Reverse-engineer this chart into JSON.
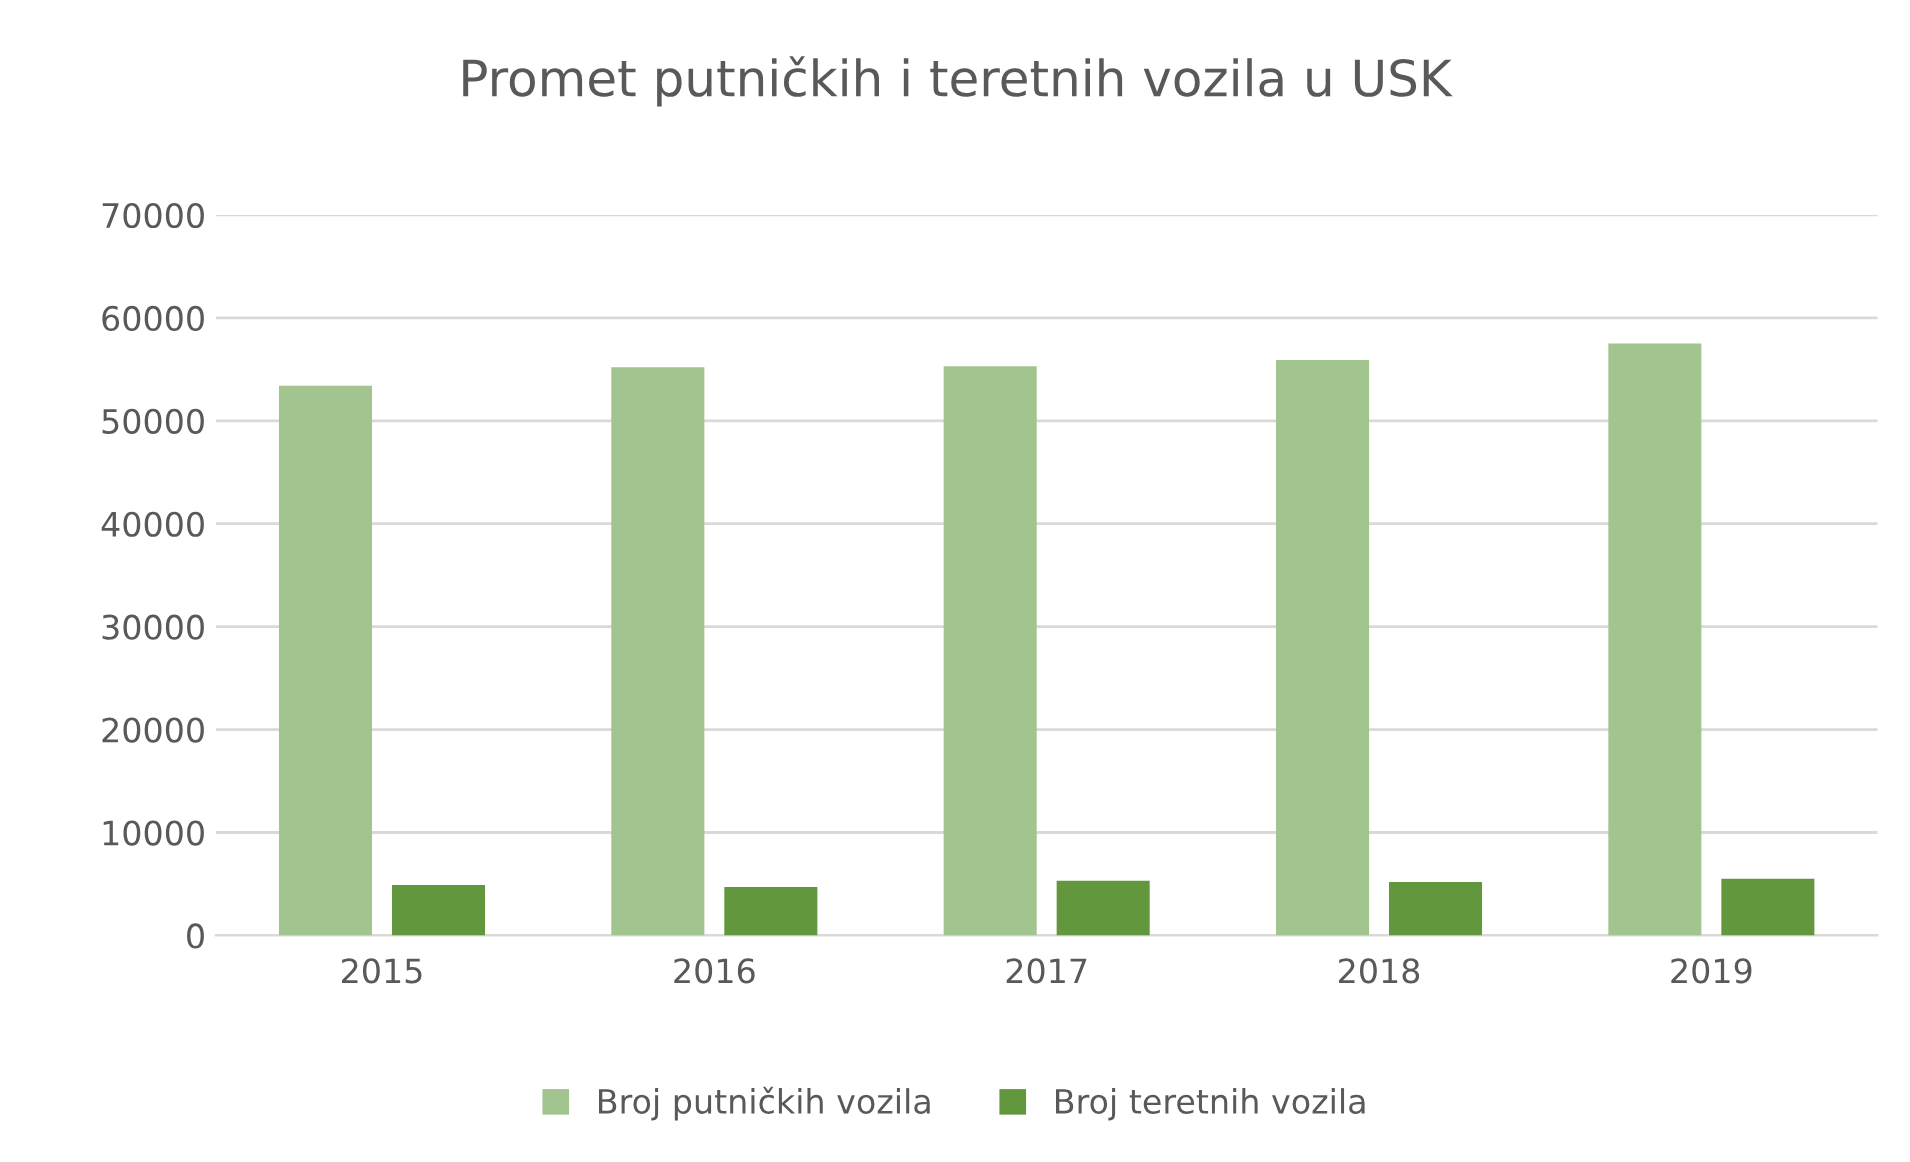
{
  "chart_data": {
    "type": "bar",
    "title": "Promet putničkih i teretnih vozila u USK",
    "categories": [
      "2015",
      "2016",
      "2017",
      "2018",
      "2019"
    ],
    "series": [
      {
        "name": "Broj putničkih vozila",
        "color": "#a2c48f",
        "values": [
          53400,
          55200,
          55300,
          55900,
          57500
        ]
      },
      {
        "name": "Broj teretnih vozila",
        "color": "#63973d",
        "values": [
          4900,
          4700,
          5300,
          5200,
          5500
        ]
      }
    ],
    "ylim": [
      0,
      70000
    ],
    "yticks": [
      0,
      10000,
      20000,
      30000,
      40000,
      50000,
      60000,
      70000
    ],
    "grid": "y",
    "legend": "bottom"
  }
}
